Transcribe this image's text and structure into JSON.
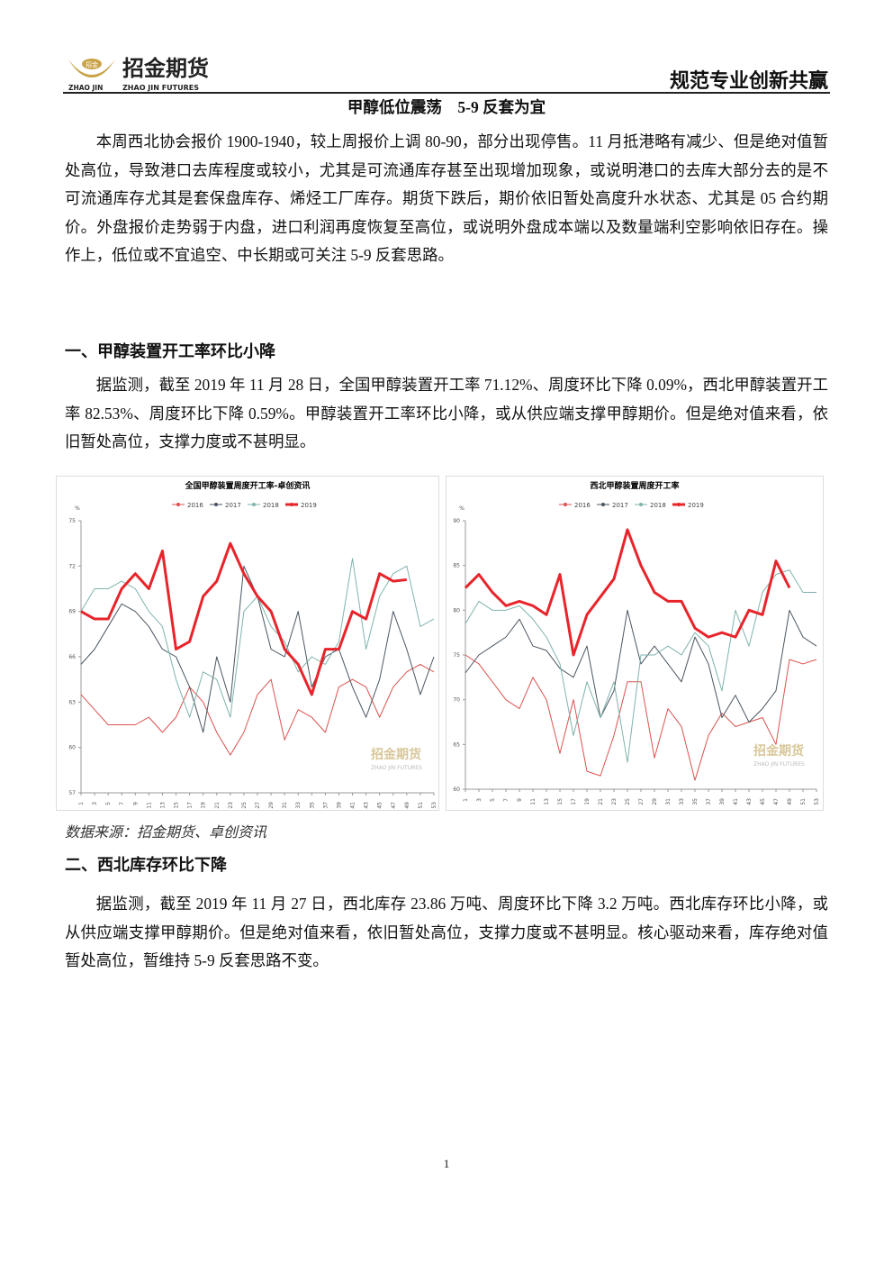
{
  "header": {
    "logo_badge": "招金",
    "logo_cn": "招金期货",
    "logo_en_left": "ZHAO JIN",
    "logo_en": "ZHAO JIN FUTURES",
    "slogan": "规范专业创新共赢"
  },
  "title": "甲醇低位震荡　5-9 反套为宜",
  "intro": "本周西北协会报价 1900-1940，较上周报价上调 80-90，部分出现停售。11 月抵港略有减少、但是绝对值暂处高位，导致港口去库程度或较小，尤其是可流通库存甚至出现增加现象，或说明港口的去库大部分去的是不可流通库存尤其是套保盘库存、烯烃工厂库存。期货下跌后，期价依旧暂处高度升水状态、尤其是 05 合约期价。外盘报价走势弱于内盘，进口利润再度恢复至高位，或说明外盘成本端以及数量端利空影响依旧存在。操作上，低位或不宜追空、中长期或可关注 5-9 反套思路。",
  "sections": [
    {
      "heading": "一、甲醇装置开工率环比小降",
      "text": "据监测，截至 2019 年 11 月 28 日，全国甲醇装置开工率 71.12%、周度环比下降 0.09%，西北甲醇装置开工率 82.53%、周度环比下降 0.59%。甲醇装置开工率环比小降，或从供应端支撑甲醇期价。但是绝对值来看，依旧暂处高位，支撑力度或不甚明显。"
    },
    {
      "heading": "二、西北库存环比下降",
      "text": "据监测，截至 2019 年 11 月 27 日，西北库存 23.86 万吨、周度环比下降 3.2 万吨。西北库存环比小降，或从供应端支撑甲醇期价。但是绝对值来看，依旧暂处高位，支撑力度或不甚明显。核心驱动来看，库存绝对值暂处高位，暂维持 5-9 反套思路不变。"
    }
  ],
  "source": "数据来源：招金期货、卓创资讯",
  "page_number": "1",
  "chart_data": [
    {
      "type": "line",
      "title": "全国甲醇装置周度开工率-卓创资讯",
      "y_unit": "%",
      "watermark": "招金期货",
      "watermark_sub": "ZHAO JIN FUTURES",
      "x": [
        1,
        3,
        5,
        7,
        9,
        11,
        13,
        15,
        17,
        19,
        21,
        23,
        25,
        27,
        29,
        31,
        33,
        35,
        37,
        39,
        41,
        43,
        45,
        47,
        49,
        51,
        53
      ],
      "xlim": [
        1,
        53
      ],
      "xticks": [
        1,
        3,
        5,
        7,
        9,
        11,
        13,
        15,
        17,
        19,
        21,
        23,
        25,
        27,
        29,
        31,
        33,
        35,
        37,
        39,
        41,
        43,
        45,
        47,
        49,
        51,
        53
      ],
      "ylim": [
        57,
        75
      ],
      "yticks": [
        57,
        60,
        63,
        66,
        69,
        72,
        75
      ],
      "series": [
        {
          "name": "2016",
          "color": "#d9534f",
          "width": 1,
          "values": [
            63.5,
            62.5,
            61.5,
            61.5,
            61.5,
            62,
            61,
            62,
            64,
            63,
            61,
            59.5,
            61,
            63.5,
            64.5,
            60.5,
            62.5,
            62,
            61,
            64,
            64.5,
            64,
            62,
            64,
            65,
            65.5,
            65
          ]
        },
        {
          "name": "2017",
          "color": "#4a5560",
          "width": 1,
          "values": [
            65.5,
            66.5,
            68,
            69.5,
            69,
            68,
            66.5,
            66,
            64,
            61,
            66,
            63,
            72,
            70,
            66.5,
            66,
            69,
            64,
            66,
            66.5,
            64,
            62,
            64.5,
            69,
            66.5,
            63.5,
            66
          ]
        },
        {
          "name": "2018",
          "color": "#7fb3ad",
          "width": 1,
          "values": [
            69,
            70.5,
            70.5,
            71,
            70.5,
            69,
            68,
            64.5,
            62,
            65,
            64.5,
            62,
            69,
            70,
            68,
            67,
            65,
            66,
            65.5,
            67,
            72.5,
            66.5,
            70,
            71.5,
            72,
            68,
            68.5
          ]
        },
        {
          "name": "2019",
          "color": "#e8242b",
          "width": 3,
          "values": [
            69,
            68.5,
            68.5,
            70.5,
            71.5,
            70.5,
            73,
            66.5,
            67,
            70,
            71,
            73.5,
            71.5,
            70,
            69,
            66.5,
            65.5,
            63.5,
            66.5,
            66.5,
            69,
            68.5,
            71.5,
            71,
            71.1,
            null,
            null
          ]
        }
      ]
    },
    {
      "type": "line",
      "title": "西北甲醇装置周度开工率",
      "y_unit": "%",
      "watermark": "招金期货",
      "watermark_sub": "ZHAO JIN FUTURES",
      "x": [
        1,
        3,
        5,
        7,
        9,
        11,
        13,
        15,
        17,
        19,
        21,
        23,
        25,
        27,
        29,
        31,
        33,
        35,
        37,
        39,
        41,
        43,
        45,
        47,
        49,
        51,
        53
      ],
      "xlim": [
        1,
        53
      ],
      "xticks": [
        1,
        3,
        5,
        7,
        9,
        11,
        13,
        15,
        17,
        19,
        21,
        23,
        25,
        27,
        29,
        31,
        33,
        35,
        37,
        39,
        41,
        43,
        45,
        47,
        49,
        51,
        53
      ],
      "ylim": [
        60,
        90
      ],
      "yticks": [
        60,
        65,
        70,
        75,
        80,
        85,
        90
      ],
      "series": [
        {
          "name": "2016",
          "color": "#d9534f",
          "width": 1,
          "values": [
            75,
            74,
            72,
            70,
            69,
            72.5,
            70,
            64,
            70,
            62,
            61.5,
            66,
            72,
            72,
            63.5,
            69,
            67,
            61,
            66,
            68.5,
            67,
            67.5,
            68,
            65,
            74.5,
            74,
            74.5
          ]
        },
        {
          "name": "2017",
          "color": "#4a5560",
          "width": 1,
          "values": [
            73,
            75,
            76,
            77,
            79,
            76,
            75.5,
            73.5,
            72.5,
            76,
            68,
            71,
            80,
            74,
            76,
            74,
            72,
            77,
            74,
            68,
            70.5,
            67.5,
            69,
            71,
            80,
            77,
            76
          ]
        },
        {
          "name": "2018",
          "color": "#7fb3ad",
          "width": 1,
          "values": [
            78.5,
            81,
            80,
            80,
            80.5,
            79,
            77,
            74,
            66,
            72,
            68,
            72,
            63,
            75,
            75,
            76,
            75,
            77.5,
            76,
            71,
            80,
            76,
            82,
            84,
            84.5,
            82,
            82
          ]
        },
        {
          "name": "2019",
          "color": "#e8242b",
          "width": 3,
          "values": [
            82.5,
            84,
            82,
            80.5,
            81,
            80.5,
            79.5,
            84,
            75,
            79.5,
            81.5,
            83.5,
            89,
            85,
            82,
            81,
            81,
            78,
            77,
            77.5,
            77,
            80,
            79.5,
            85.5,
            82.5,
            null,
            null
          ]
        }
      ]
    }
  ]
}
